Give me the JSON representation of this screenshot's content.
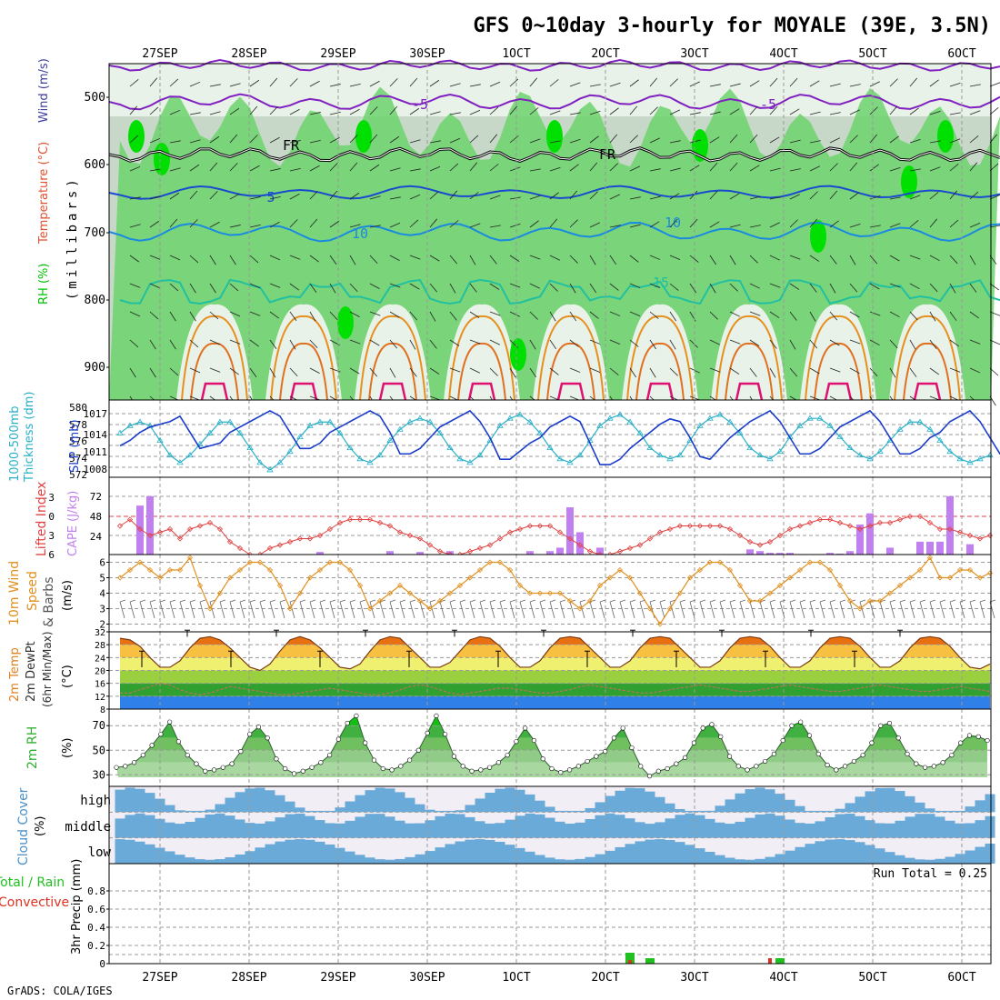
{
  "title": "GFS 0~10day 3-hourly for MOYALE (39E, 3.5N)",
  "footer": "GrADS: COLA/IGES",
  "date_labels": [
    "27SEP",
    "28SEP",
    "29SEP",
    "30SEP",
    "1OCT",
    "2OCT",
    "3OCT",
    "4OCT",
    "5OCT",
    "6OCT"
  ],
  "run_total": "Run Total = 0.25",
  "colors": {
    "rh_dark": "#00e000",
    "rh_mid": "#6cd36c",
    "rh_light": "#c8d8c8",
    "rh_pale": "#e8f2e8",
    "slp": "#1a3cc8",
    "thickness": "#2ab0c8",
    "cape": "#c080f0",
    "lifted": "#e04040",
    "wind10": "#e09020",
    "rh2m": "#30b030",
    "cloud": "#6aaad8",
    "cloud_bg": "#f2eef6",
    "precip_total": "#20c020",
    "precip_conv": "#e03020"
  },
  "panels": {
    "upper": {
      "ylabel_a": "RH (%)",
      "ylabel_b": "Temperature (°C)",
      "ylabel_c": "Wind (m/s)",
      "ylabel_d": "(millibars)",
      "yticks": [
        "500",
        "600",
        "700",
        "800",
        "900"
      ],
      "contour_labels": [
        "-5",
        "-5",
        "FR",
        "FR",
        "5",
        "10",
        "10",
        "15"
      ]
    },
    "slp": {
      "ylabel_a": "1000-500mb",
      "ylabel_b": "Thickness (dm)",
      "ylabel_c": "SLP (mb)",
      "yticks_left": [
        "580",
        "578",
        "576",
        "574",
        "572"
      ],
      "yticks_right": [
        "1017",
        "1014",
        "1011",
        "1008"
      ]
    },
    "cape": {
      "ylabel_a": "Lifted Index",
      "ylabel_b": "CAPE (J/kg)",
      "yticks_left": [
        "-3",
        "0",
        "3",
        "6"
      ],
      "yticks_right": [
        "72",
        "48",
        "24"
      ]
    },
    "wind": {
      "ylabel_a": "10m Wind",
      "ylabel_b": "Speed",
      "ylabel_c": "& Barbs",
      "ylabel_d": "(m/s)",
      "yticks": [
        "6",
        "5",
        "4",
        "3",
        "2"
      ]
    },
    "temp": {
      "ylabel_a": "2m Temp",
      "ylabel_b": "2m DewPt",
      "ylabel_c": "(6hr Min/Max)",
      "ylabel_d": "(°C)",
      "yticks": [
        "32",
        "28",
        "24",
        "20",
        "16",
        "12",
        "8"
      ]
    },
    "rh": {
      "ylabel_a": "2m RH",
      "ylabel_b": "(%)",
      "yticks": [
        "70",
        "50",
        "30"
      ]
    },
    "cloud": {
      "ylabel_a": "Cloud Cover",
      "ylabel_b": "(%)",
      "rows": [
        "high",
        "middle",
        "low"
      ]
    },
    "precip": {
      "ylabel_a": "Total / Rain",
      "ylabel_b": "Convective",
      "ylabel_c": "3hr Precip (mm)",
      "yticks": [
        "0.8",
        "0.6",
        "0.4",
        "0.2",
        "0"
      ]
    }
  },
  "chart_data": [
    {
      "type": "line",
      "name": "slp",
      "series": [
        {
          "name": "SLP",
          "values": [
            1011.5,
            1012.5,
            1014,
            1015,
            1015.5,
            1016,
            1017,
            1014,
            1011,
            1011.5,
            1012,
            1014,
            1015,
            1016,
            1017,
            1018,
            1017,
            1014,
            1011,
            1011,
            1012,
            1014,
            1015,
            1016,
            1017,
            1018,
            1017,
            1014,
            1010,
            1010,
            1011,
            1013,
            1015,
            1016,
            1017,
            1018,
            1016,
            1013,
            1009,
            1009,
            1010.5,
            1012,
            1013,
            1015,
            1016,
            1017,
            1016,
            1012,
            1008,
            1008,
            1009,
            1011,
            1012.5,
            1014,
            1015.5,
            1016.5,
            1016,
            1013,
            1009.5,
            1009,
            1011,
            1013,
            1014.5,
            1016,
            1017,
            1018,
            1016,
            1013,
            1010,
            1010,
            1011,
            1013,
            1015,
            1016,
            1017,
            1018,
            1016,
            1013,
            1010,
            1010,
            1011,
            1013,
            1014,
            1016,
            1017,
            1018,
            1016,
            1013,
            1010,
            1009.5,
            1011.5
          ]
        },
        {
          "name": "Thickness",
          "values": [
            577,
            578,
            578.5,
            578,
            576,
            574,
            573,
            574,
            575.5,
            577,
            578.5,
            578.5,
            577,
            575,
            573,
            572,
            573,
            574.5,
            576.5,
            578,
            578.5,
            578.5,
            577,
            575,
            573.5,
            573,
            574,
            576,
            577.5,
            578.5,
            579,
            578.5,
            577,
            575,
            573.5,
            573,
            574,
            576,
            578,
            579,
            579.5,
            578.5,
            577,
            575,
            573.5,
            573,
            574,
            576,
            578,
            579,
            579.5,
            578.5,
            577,
            575,
            574,
            573.5,
            574,
            576,
            578,
            579,
            579.5,
            578.5,
            577,
            575,
            574,
            573.5,
            574.5,
            576.5,
            578,
            579,
            579,
            578,
            576.5,
            575,
            574,
            573.5,
            574.5,
            576,
            577.5,
            578.5,
            578.5,
            577.5,
            576,
            574.5,
            573.5,
            573,
            573.5,
            574
          ]
        }
      ]
    },
    {
      "type": "bar",
      "name": "cape",
      "bars_x_index": [
        2,
        3,
        20,
        27,
        30,
        33,
        41,
        43,
        44,
        45,
        46,
        48,
        63,
        64,
        65,
        66,
        67,
        71,
        72,
        73,
        74,
        75,
        77,
        80,
        81,
        82,
        83,
        85
      ],
      "values": [
        57,
        68,
        3,
        4,
        3,
        4,
        4,
        4,
        8,
        55,
        26,
        8,
        6,
        4,
        2,
        2,
        2,
        2,
        1,
        4,
        35,
        48,
        8,
        15,
        15,
        15,
        68,
        12
      ],
      "lifted_index": [
        1.5,
        0.5,
        2,
        3,
        2.5,
        2,
        3.5,
        2,
        1.5,
        1,
        2,
        4,
        5,
        6,
        6,
        5,
        4.5,
        4,
        3.5,
        3.5,
        3,
        2,
        1,
        0.5,
        0.5,
        0.5,
        1,
        1.5,
        2.5,
        3,
        3.5,
        4.5,
        5.5,
        6,
        6,
        5.5,
        5,
        4.5,
        3.5,
        2.5,
        2,
        1.5,
        1.5,
        1.5,
        2.5,
        3.5,
        4.5,
        5.5,
        6,
        6,
        5.5,
        5,
        4.5,
        3.5,
        2.5,
        2,
        1.5,
        1.5,
        1.5,
        1.5,
        1.5,
        2,
        3,
        4,
        4.5,
        4,
        3,
        2,
        1.5,
        1,
        0.5,
        0.5,
        1,
        1.5,
        2,
        1.5,
        1,
        1,
        0.5,
        0,
        0,
        1,
        2,
        2,
        2.5,
        3,
        3.5,
        3
      ]
    },
    {
      "type": "line",
      "name": "wind10m",
      "values": [
        5,
        5.5,
        6,
        5.5,
        5,
        5.5,
        5.5,
        6.3,
        4.5,
        3,
        4,
        5,
        5.5,
        6,
        6,
        5.5,
        4.5,
        3,
        4,
        5,
        5.5,
        6,
        6,
        5.5,
        4.5,
        3,
        3.5,
        4,
        4.5,
        4,
        3.5,
        3,
        3.5,
        4,
        4.5,
        5,
        5.5,
        6,
        6,
        5.5,
        4.5,
        4,
        4,
        4,
        4,
        3.5,
        3,
        3.5,
        4.5,
        5,
        5.5,
        5,
        4,
        3,
        2,
        3,
        4,
        5,
        5.5,
        6,
        6,
        5.5,
        4.5,
        3.5,
        3.5,
        4,
        4.5,
        5,
        5.5,
        6,
        6,
        5.5,
        4.5,
        3.5,
        3,
        3.5,
        3.5,
        4,
        4.5,
        5,
        5.5,
        6.3,
        5,
        5,
        5.5,
        5.5,
        5,
        5.3
      ],
      "ylim": [
        1.5,
        6.5
      ]
    },
    {
      "type": "area",
      "name": "temp2m",
      "values": [
        30,
        29.5,
        27.5,
        24,
        21,
        21,
        23,
        27,
        30,
        30.5,
        29.5,
        27,
        24,
        21,
        20,
        22,
        26,
        29.5,
        30.5,
        29.5,
        27,
        24,
        21,
        20.5,
        22,
        26,
        29.5,
        30.5,
        30,
        27,
        24,
        21,
        21,
        22.5,
        26,
        29.5,
        30.5,
        30,
        27.5,
        24,
        21,
        21,
        23,
        27,
        30,
        30.5,
        30,
        27,
        24,
        21,
        21,
        23,
        27,
        30,
        30.5,
        30,
        27,
        24,
        21,
        21,
        23,
        27,
        30,
        30.5,
        30,
        27.5,
        24,
        21,
        21,
        23,
        27,
        30,
        30.5,
        30,
        27.5,
        24,
        21,
        21,
        23,
        27,
        30,
        30.5,
        30,
        27.5,
        24,
        21,
        20.5,
        22
      ],
      "dewpoint": [
        13,
        13,
        14,
        15,
        16,
        15.5,
        14,
        13,
        12.5,
        13,
        14,
        15,
        14.5,
        14,
        13.5,
        13,
        12.5,
        12.5,
        13,
        13.5,
        14,
        14.5,
        14,
        13.5,
        13,
        12.5,
        12.5,
        13,
        14,
        15,
        15.5,
        15,
        14,
        13,
        12.5,
        13,
        13.5,
        14,
        14.5,
        14.5,
        14,
        13.5,
        13,
        13,
        13.5,
        14,
        15,
        15.5,
        15,
        14.5,
        14,
        13.5,
        13,
        13,
        13.5,
        14,
        14.5,
        15,
        15.5,
        15,
        14.5,
        14,
        13.5,
        13.5,
        14,
        14.5,
        15,
        15.5,
        15,
        14.5,
        14,
        13.5,
        13.5,
        14,
        14.5,
        15,
        15.5,
        15,
        14.5,
        14,
        13.5,
        13.5,
        14,
        14.5,
        15,
        14.5,
        14,
        13.5
      ],
      "ylim": [
        8,
        32
      ]
    },
    {
      "type": "area",
      "name": "rh2m",
      "values": [
        36,
        37,
        40,
        46,
        54,
        63,
        73,
        57,
        46,
        39,
        33,
        34,
        36,
        39,
        49,
        63,
        69,
        60,
        43,
        35,
        31,
        33,
        36,
        40,
        46,
        59,
        72,
        78,
        56,
        42,
        35,
        34,
        37,
        42,
        50,
        64,
        78,
        63,
        45,
        37,
        33,
        34,
        36,
        40,
        46,
        57,
        68,
        58,
        43,
        35,
        32,
        34,
        37,
        41,
        45,
        49,
        60,
        68,
        52,
        37,
        29,
        33,
        35,
        39,
        44,
        56,
        68,
        71,
        61,
        45,
        37,
        34,
        37,
        41,
        47,
        58,
        70,
        73,
        62,
        47,
        38,
        34,
        37,
        41,
        46,
        56,
        70,
        72,
        60,
        47,
        39,
        36,
        37,
        40,
        46,
        56,
        62,
        61,
        58
      ]
    },
    {
      "type": "bar",
      "name": "precip3hr",
      "series": [
        {
          "name": "Total / Rain",
          "x_index": [
            51,
            53,
            66
          ],
          "values": [
            0.12,
            0.06,
            0.06
          ]
        },
        {
          "name": "Convective",
          "x_index": [
            51,
            65
          ],
          "values": [
            0.04,
            0.06
          ]
        }
      ],
      "ylim": [
        0,
        1.0
      ]
    }
  ]
}
